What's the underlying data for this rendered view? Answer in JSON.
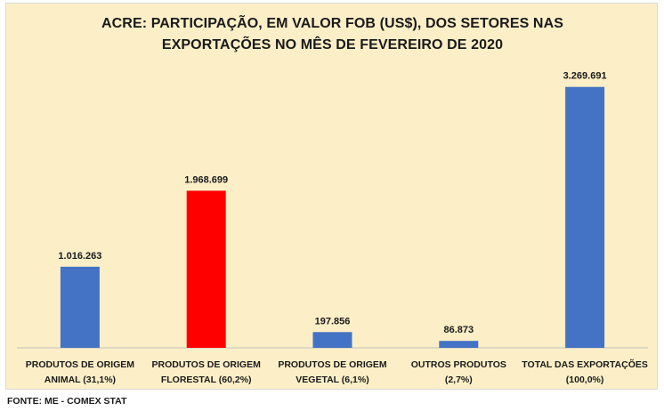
{
  "chart_data": {
    "type": "bar",
    "title": "ACRE: PARTICIPAÇÃO, EM VALOR FOB (US$), DOS  SETORES NAS EXPORTAÇÕES NO MÊS DE FEVEREIRO DE 2020",
    "title_lines": [
      "ACRE: PARTICIPAÇÃO, EM VALOR FOB (US$), DOS  SETORES NAS",
      "EXPORTAÇÕES NO MÊS DE FEVEREIRO DE 2020"
    ],
    "categories": [
      [
        "PRODUTOS DE ORIGEM",
        "ANIMAL (31,1%)"
      ],
      [
        "PRODUTOS DE ORIGEM",
        "FLORESTAL (60,2%)"
      ],
      [
        "PRODUTOS DE ORIGEM",
        "VEGETAL (6,1%)"
      ],
      [
        "OUTROS PRODUTOS",
        "(2,7%)"
      ],
      [
        "TOTAL DAS EXPORTAÇÕES",
        "(100,0%)"
      ]
    ],
    "values": [
      1016263,
      1968699,
      197856,
      86873,
      3269691
    ],
    "value_labels": [
      "1.016.263",
      "1.968.699",
      "197.856",
      "86.873",
      "3.269.691"
    ],
    "colors": [
      "#4472c4",
      "#ff0000",
      "#4472c4",
      "#4472c4",
      "#4472c4"
    ],
    "ylim": [
      0,
      3400000
    ],
    "xlabel": "",
    "ylabel": "",
    "grid": false
  },
  "footer": {
    "source": "FONTE: ME - COMEX STAT"
  }
}
